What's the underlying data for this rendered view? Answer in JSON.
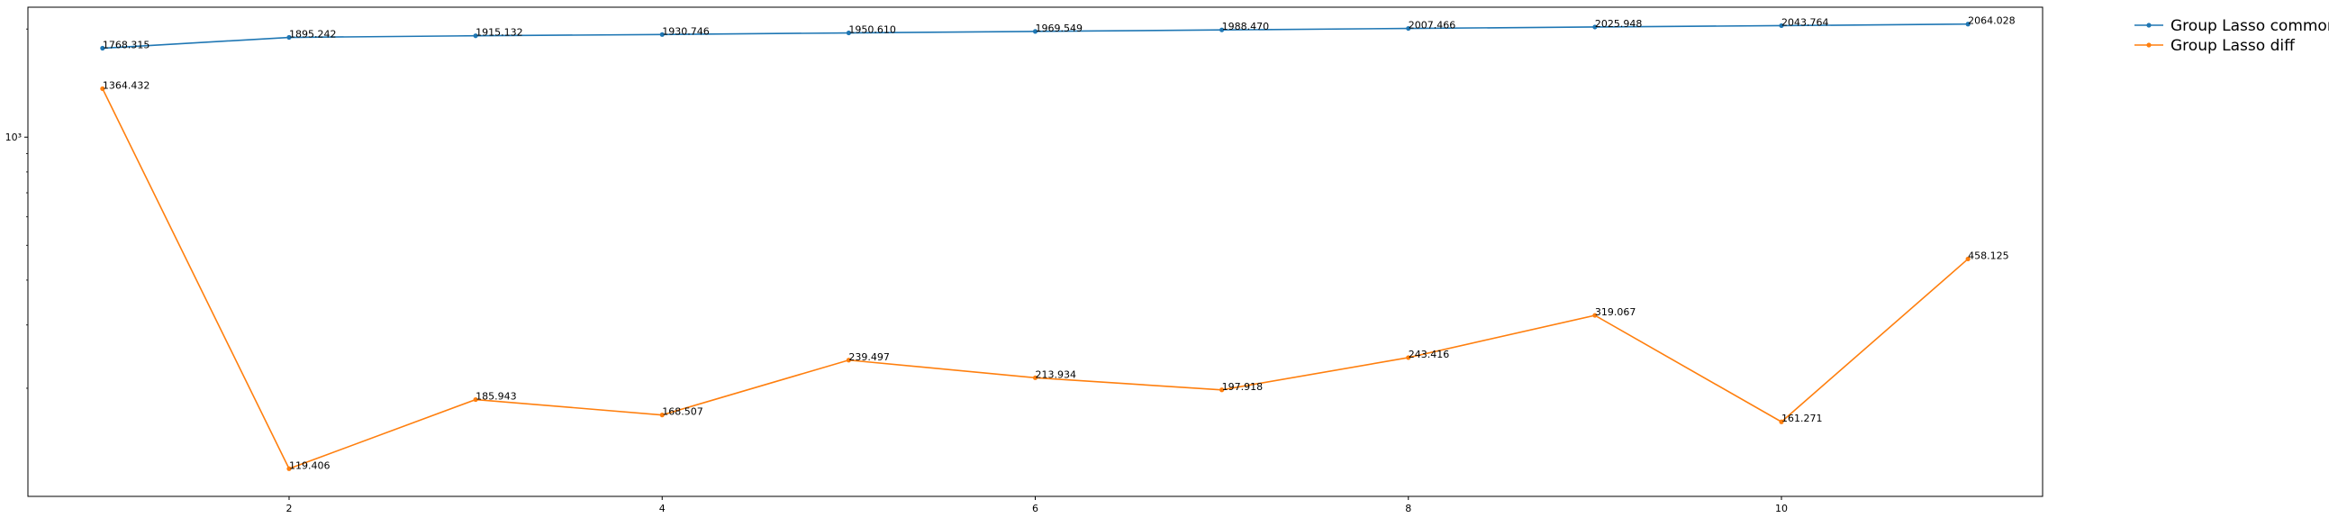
{
  "chart_data": {
    "type": "line",
    "title": "",
    "xlabel": "",
    "ylabel": "",
    "x": [
      1,
      2,
      3,
      4,
      5,
      6,
      7,
      8,
      9,
      10,
      11
    ],
    "xticks": [
      2,
      4,
      6,
      8,
      10
    ],
    "xtick_labels": [
      "2",
      "4",
      "6",
      "8",
      "10"
    ],
    "xlim": [
      0.6,
      11.4
    ],
    "yscale": "log",
    "ylim": [
      100,
      2300
    ],
    "yticks": [
      1000
    ],
    "ytick_labels": [
      "10³"
    ],
    "grid": false,
    "legend_position": "outside-top-right",
    "series": [
      {
        "name": "Group Lasso common",
        "color": "#1f77b4",
        "marker": "circle",
        "values": [
          1768.315,
          1895.242,
          1915.132,
          1930.746,
          1950.61,
          1969.549,
          1988.47,
          2007.466,
          2025.948,
          2043.764,
          2064.028
        ],
        "labels": [
          "1768.315",
          "1895.242",
          "1915.132",
          "1930.746",
          "1950.610",
          "1969.549",
          "1988.470",
          "2007.466",
          "2025.948",
          "2043.764",
          "2064.028"
        ]
      },
      {
        "name": "Group Lasso diff",
        "color": "#ff7f0e",
        "marker": "circle",
        "values": [
          1364.432,
          119.406,
          185.943,
          168.507,
          239.497,
          213.934,
          197.918,
          243.416,
          319.067,
          161.271,
          458.125
        ],
        "labels": [
          "1364.432",
          "119.406",
          "185.943",
          "168.507",
          "239.497",
          "213.934",
          "197.918",
          "243.416",
          "319.067",
          "161.271",
          "458.125"
        ]
      }
    ]
  }
}
